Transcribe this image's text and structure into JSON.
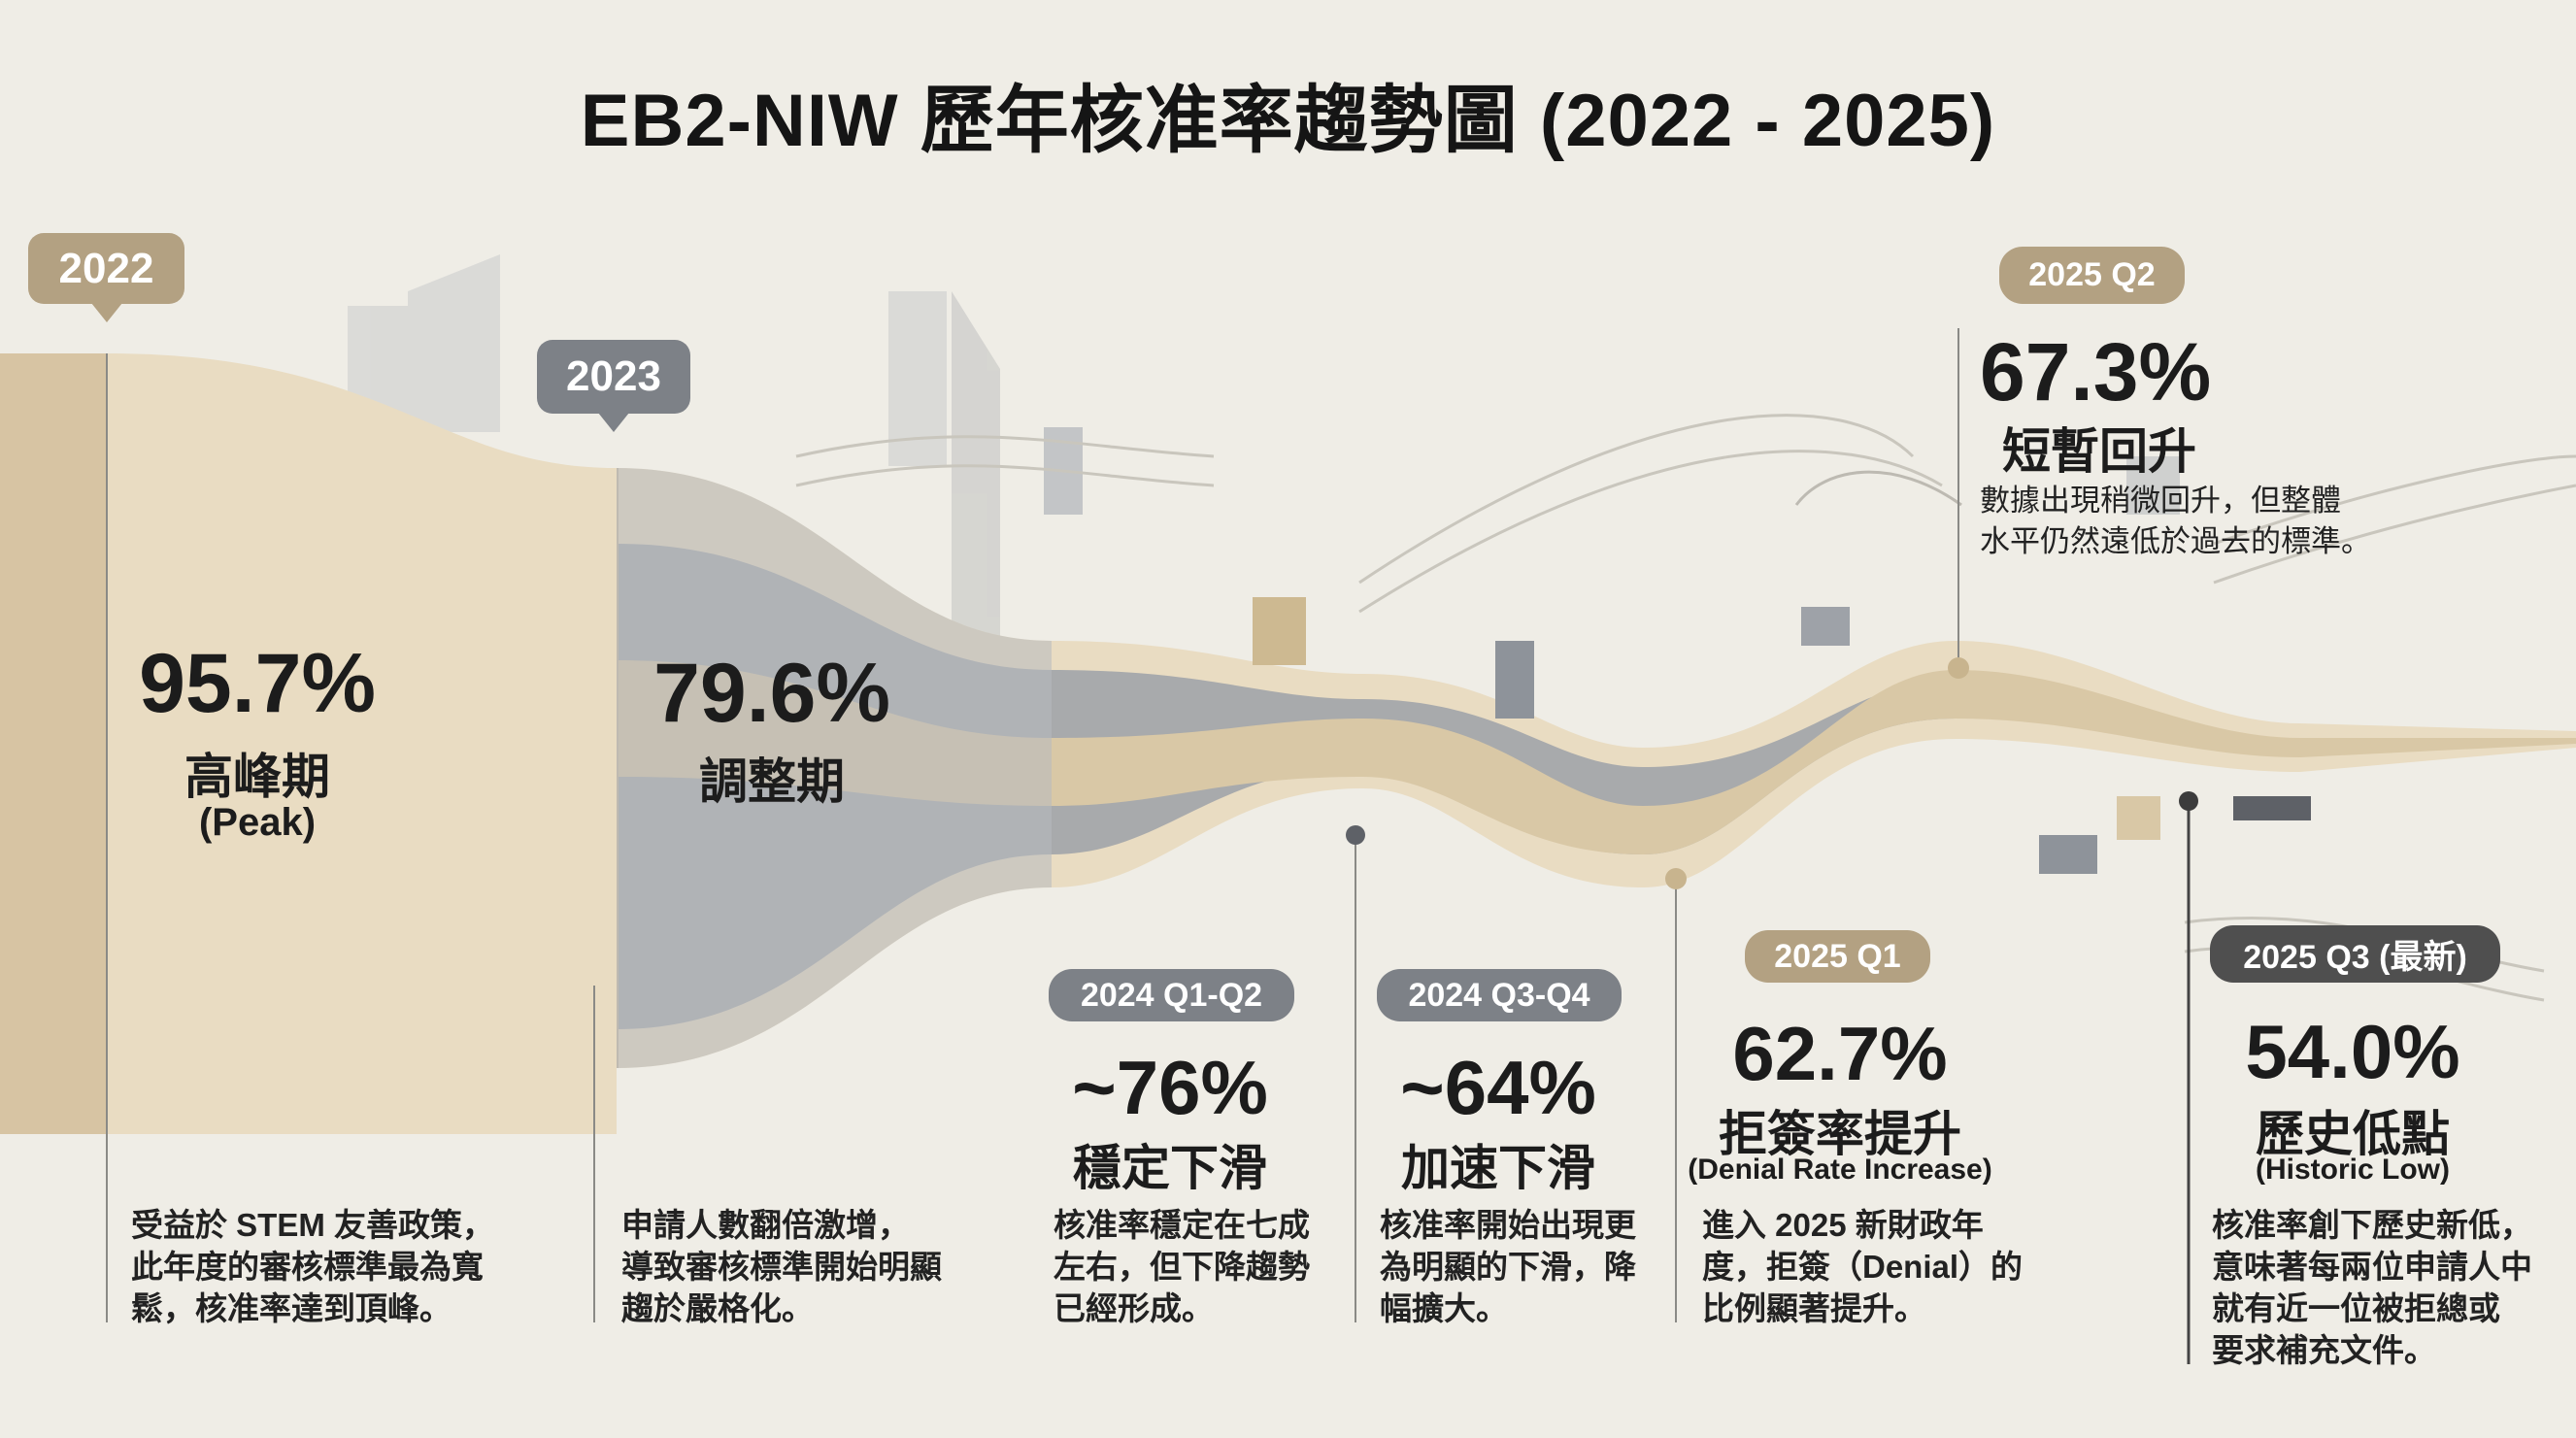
{
  "title": "EB2-NIW 歷年核准率趨勢圖 (2022 - 2025)",
  "colors": {
    "tan": "#b3a182",
    "light_tan": "#e9dcc2",
    "gray": "#8e939a",
    "dark": "#4f4f4f",
    "background": "#efede6"
  },
  "periods": [
    {
      "badge": "2022",
      "value": "95.7%",
      "label": "高峰期",
      "sublabel": "(Peak)",
      "desc": [
        "受益於 STEM 友善政策，",
        "此年度的審核標準最為寬",
        "鬆，核准率達到頂峰。"
      ]
    },
    {
      "badge": "2023",
      "value": "79.6%",
      "label": "調整期",
      "desc": [
        "申請人數翻倍激增，",
        "導致審核標準開始明顯",
        "趨於嚴格化。"
      ]
    },
    {
      "badge": "2024 Q1-Q2",
      "value": "~76%",
      "label": "穩定下滑",
      "desc": [
        "核准率穩定在七成",
        "左右，但下降趨勢",
        "已經形成。"
      ]
    },
    {
      "badge": "2024 Q3-Q4",
      "value": "~64%",
      "label": "加速下滑",
      "desc": [
        "核准率開始出現更",
        "為明顯的下滑，降",
        "幅擴大。"
      ]
    },
    {
      "badge": "2025 Q1",
      "value": "62.7%",
      "label": "拒簽率提升",
      "sublabel": "(Denial Rate Increase)",
      "desc": [
        "進入 2025 新財政年",
        "度，拒簽（Denial）的",
        "比例顯著提升。"
      ]
    },
    {
      "badge": "2025 Q2",
      "value": "67.3%",
      "label": "短暫回升",
      "desc": [
        "數據出現稍微回升，但整體",
        "水平仍然遠低於過去的標準。"
      ]
    },
    {
      "badge": "2025 Q3 (最新)",
      "value": "54.0%",
      "label": "歷史低點",
      "sublabel": "(Historic Low)",
      "desc": [
        "核准率創下歷史新低，",
        "意味著每兩位申請人中",
        "就有近一位被拒總或",
        "要求補充文件。"
      ]
    }
  ],
  "chart_data": {
    "type": "area",
    "title": "EB2-NIW 歷年核准率趨勢圖 (2022 - 2025)",
    "categories": [
      "2022",
      "2023",
      "2024 Q1-Q2",
      "2024 Q3-Q4",
      "2025 Q1",
      "2025 Q2",
      "2025 Q3 (最新)"
    ],
    "values": [
      95.7,
      79.6,
      76,
      64,
      62.7,
      67.3,
      54.0
    ],
    "unit": "%",
    "grid": false
  }
}
